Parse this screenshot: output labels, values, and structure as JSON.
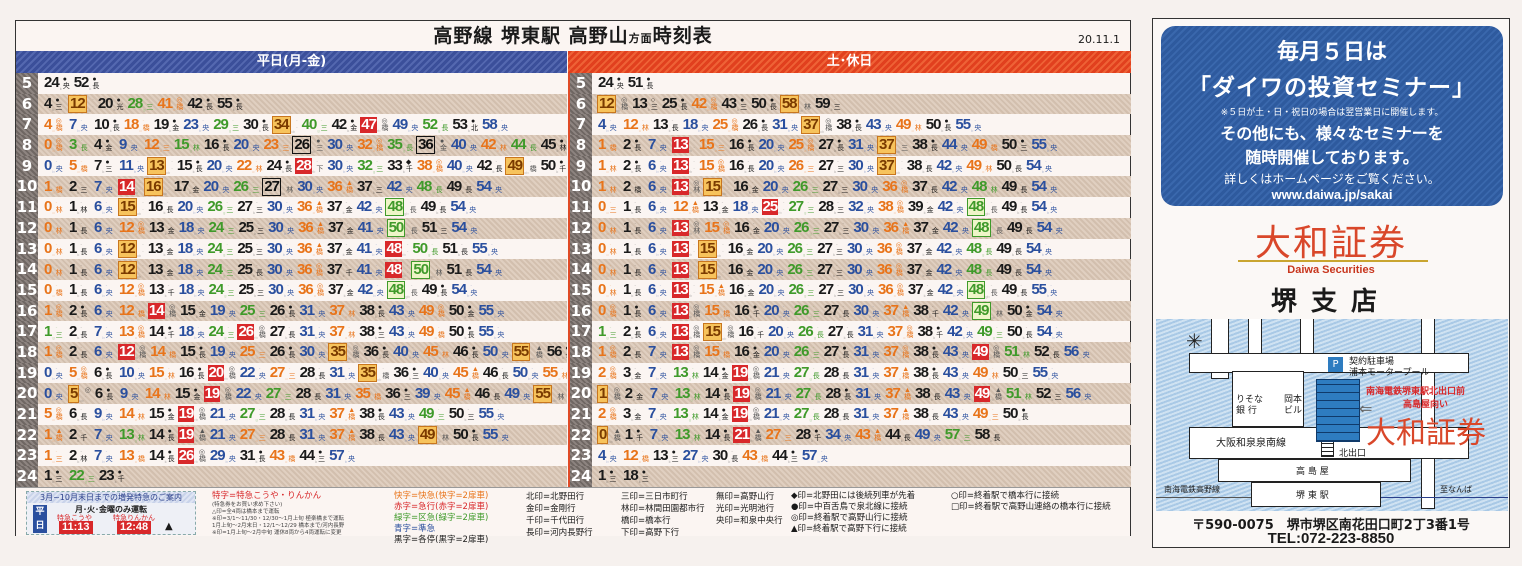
{
  "header": {
    "title_main": "高野線 堺東駅 高野山",
    "title_small": "方面",
    "title_tail": "時刻表",
    "date": "20.11.1"
  },
  "weekday": {
    "label": "平日(月-金)",
    "rows": [
      {
        "hour": "5",
        "trains": [
          "24 k ● 央",
          "52 k ● 長"
        ]
      },
      {
        "hour": "6",
        "trains": [
          "4 k ● 三",
          "12 ob - -",
          "20 k ● 光",
          "28 g - 三",
          "41 o ◎ 橋",
          "42 k ● 長",
          "55 k ● 長"
        ]
      },
      {
        "hour": "7",
        "trains": [
          "4 o ◎ 橋",
          "7 b - 央",
          "10 k ● 長",
          "18 o - 橋",
          "19 k ● 金",
          "23 b - 央",
          "29 g - 三",
          "30 k ● 長",
          "34 ob - -",
          "40 g - 三",
          "42 k ● 金",
          "47 rb ◎ 橋",
          "49 b - 央",
          "52 g - 長",
          "53 k ● 北",
          "58 b - 央"
        ]
      },
      {
        "hour": "8",
        "trains": [
          "0 o ◎ 橋",
          "3 g - 長",
          "4 k ● 金",
          "9 b - 央",
          "12 o - 三",
          "15 g - 林",
          "16 k ● 長",
          "20 b - 央",
          "23 o - 三",
          "26 kb ● 三",
          "30 b - 央",
          "32 o ◎ 橋",
          "35 g - 長",
          "36 kb ● 金",
          "40 b - 央",
          "42 o - 林",
          "44 g - 長",
          "45 k ● 林",
          "50 b - 央",
          "52 o - 橋",
          "56 k ● 長"
        ]
      },
      {
        "hour": "9",
        "trains": [
          "0 b - 央",
          "5 o - 橋",
          "7 k ● 三",
          "11 b - 央",
          "13 ob - -",
          "15 k ● 長",
          "20 b - 央",
          "22 o - 林",
          "24 k ● 長",
          "28 rb - 下",
          "30 b - 央",
          "32 g - 三",
          "33 k ◆ 千",
          "38 o ◎ 橋",
          "40 b - 央",
          "42 k - 長",
          "49 ob - 橋",
          "50 k ● 千",
          "54 b - 央",
          "56 k ◆ 長"
        ]
      },
      {
        "hour": "10",
        "trains": [
          "1 o - 橋",
          "2 k - 三",
          "7 b - 央",
          "14 rb - -",
          "16 ob - -",
          "17 k - 金",
          "20 b - 央",
          "26 g - 三",
          "27 kb - 林",
          "30 b - 央",
          "36 o ▲ 橋",
          "37 k - 三",
          "42 b - 央",
          "48 g - 長",
          "49 k - 長",
          "54 b - 央"
        ]
      },
      {
        "hour": "11",
        "trains": [
          "0 o - 林",
          "1 k - 林",
          "6 b - 央",
          "15 ob - -",
          "16 k - 長",
          "20 b - 央",
          "26 g - 三",
          "27 k - 三",
          "30 b - 央",
          "36 o ▲ 橋",
          "37 k - 金",
          "42 b - 央",
          "48 gb - 長",
          "49 k - 長",
          "54 b - 央"
        ]
      },
      {
        "hour": "12",
        "trains": [
          "0 o - 林",
          "1 k - 長",
          "6 b - 央",
          "12 o ◎ 橋",
          "13 k - 金",
          "18 b - 央",
          "24 g - 三",
          "25 k - 三",
          "30 b - 央",
          "36 o ▲ 橋",
          "37 k - 金",
          "41 b - 央",
          "50 gb - 長",
          "51 k - 三",
          "54 b - 央"
        ]
      },
      {
        "hour": "13",
        "trains": [
          "0 o - 林",
          "1 k - 長",
          "6 b - 央",
          "12 ob - -",
          "13 k - 金",
          "18 b - 央",
          "24 g - 三",
          "25 k - 三",
          "30 b - 央",
          "36 o ▲ 橋",
          "37 k - 金",
          "41 b - 央",
          "48 rb - -",
          "50 g - 長",
          "51 k - 長",
          "55 b - 央"
        ]
      },
      {
        "hour": "14",
        "trains": [
          "0 o - 林",
          "1 k - 長",
          "6 b - 央",
          "12 ob - -",
          "13 k - 金",
          "18 b - 央",
          "24 g - 三",
          "25 k - 長",
          "30 b - 央",
          "36 o ◎ 橋",
          "37 k - 千",
          "41 b - 央",
          "48 rb - -",
          "50 gb - 林",
          "51 k - 長",
          "54 b - 央"
        ]
      },
      {
        "hour": "15",
        "trains": [
          "0 o - 橋",
          "1 k - 長",
          "6 b - 央",
          "12 o ◎ 橋",
          "13 k - 千",
          "18 b - 央",
          "24 g - 三",
          "25 k - 三",
          "30 b - 央",
          "36 o ◎ 橋",
          "37 k - 金",
          "42 b - 央",
          "48 gb - 長",
          "49 k ● 長",
          "54 b - 央"
        ]
      },
      {
        "hour": "16",
        "trains": [
          "1 o ◎ 橋",
          "2 k ● 長",
          "6 b - 央",
          "12 o - 橋",
          "14 rb ◎ 橋",
          "15 k - 金",
          "19 b - 央",
          "25 g - 三",
          "26 k ● 長",
          "31 b - 央",
          "37 o - 林",
          "38 k ● 長",
          "43 b - 央",
          "49 o ◎ 橋",
          "50 k ● 金",
          "55 b - 央"
        ]
      },
      {
        "hour": "17",
        "trains": [
          "1 g - 三",
          "2 k - 長",
          "7 b - 央",
          "13 o ◎ 橋",
          "14 k ● 千",
          "18 b - 央",
          "24 g - 三",
          "26 rb ◎ 橋",
          "27 k - 長",
          "31 b - 央",
          "37 o - 林",
          "38 k ● 三",
          "43 b - 央",
          "49 o - 橋",
          "50 k ● 長",
          "55 b - 央"
        ]
      },
      {
        "hour": "18",
        "trains": [
          "1 o ◎ 橋",
          "2 k - 長",
          "6 b - 央",
          "12 rb ◎ 橋",
          "14 o - 橋",
          "15 k ● 長",
          "19 b - 央",
          "25 o - 三",
          "26 k ● 長",
          "30 b - 央",
          "35 ob ◎ 橋",
          "36 k ● 長",
          "40 b - 央",
          "45 o - 林",
          "46 k ● 長",
          "50 b - 央",
          "55 ob ▲ 橋",
          "56 k ● 長"
        ]
      },
      {
        "hour": "19",
        "trains": [
          "0 b - 央",
          "5 o ◎ 橋",
          "6 k ● 長",
          "10 b - 央",
          "15 o - 林",
          "16 k ● 長",
          "20 rb ◎ 橋",
          "22 b - 央",
          "27 o - 三",
          "28 k - 長",
          "31 b - 央",
          "35 ob - 橋",
          "36 k ● 三",
          "40 b - 央",
          "45 o ▲ 橋",
          "46 k - 長",
          "50 b - 央",
          "55 o - 林",
          "56 k ● 長"
        ]
      },
      {
        "hour": "20",
        "trains": [
          "0 b - 央",
          "5 ob ◎ -",
          "6 k ● 長",
          "9 b - 央",
          "14 o - 林",
          "15 k ● 金",
          "19 rb ◎ 橋",
          "22 b - 央",
          "27 g - 三",
          "28 k - 長",
          "31 b - 央",
          "35 o - 橋",
          "36 k ● 三",
          "39 b - 央",
          "45 o ▲ 橋",
          "46 k - 長",
          "49 b - 央",
          "55 ob - 林",
          "56 k - 長",
          "59 b - 央"
        ]
      },
      {
        "hour": "21",
        "trains": [
          "5 o ◎ 橋",
          "6 k - 長",
          "9 b - 央",
          "14 o - 林",
          "15 k ● 金",
          "19 rb ◎ 橋",
          "21 b - 央",
          "27 g - 三",
          "28 k - 長",
          "31 b - 央",
          "37 o ▲ 橋",
          "38 k ● 長",
          "43 b - 央",
          "49 g - 三",
          "50 k - 三",
          "55 b - 央"
        ]
      },
      {
        "hour": "22",
        "trains": [
          "1 o ▲ 橋",
          "2 k - 千",
          "7 b - 央",
          "13 g - 林",
          "14 k ● 長",
          "19 rb ▲ 橋",
          "21 b - 央",
          "27 o - 三",
          "28 k - 長",
          "31 b - 央",
          "37 o ▲ 橋",
          "38 k - 長",
          "43 b - 央",
          "49 ob - 林",
          "50 k ● 長",
          "55 b - 央"
        ]
      },
      {
        "hour": "23",
        "trains": [
          "1 o - 三",
          "2 k - 林",
          "7 b - 央",
          "13 o - 橋",
          "14 k ● 長",
          "26 rb ◎ 橋",
          "29 b - 央",
          "31 k ● 長",
          "43 o - 橋",
          "44 k ● 三",
          "57 b - 央"
        ]
      },
      {
        "hour": "24",
        "trains": [
          "1 k ● 三",
          "22 g - 三",
          "23 k ● 千"
        ]
      }
    ]
  },
  "weekend": {
    "label": "土･休日",
    "rows": [
      {
        "hour": "5",
        "trains": [
          "24 k ● 央",
          "51 k ● 長"
        ]
      },
      {
        "hour": "6",
        "trains": [
          "12 ob ◎ 橋",
          "13 k ○ 三",
          "25 k ● 長",
          "42 o ◎ 橋",
          "43 k ● 三",
          "50 k ● 長",
          "58 ob - 林",
          "59 k - 三"
        ]
      },
      {
        "hour": "7",
        "trains": [
          "4 b - 央",
          "12 o - 林",
          "13 k - 長",
          "18 b - 央",
          "25 o ◎ 橋",
          "26 k ● 長",
          "31 b - 央",
          "37 ob ◎ 橋",
          "38 k ● 長",
          "43 b - 央",
          "49 o - 林",
          "50 k ● 長",
          "55 b - 央"
        ]
      },
      {
        "hour": "8",
        "trains": [
          "1 o - 橋",
          "2 k ● 長",
          "7 b - 央",
          "13 rb - -",
          "15 o - 三",
          "16 k ● 長",
          "20 b - 央",
          "25 o ◎ 橋",
          "27 k ● 長",
          "31 b - 央",
          "37 ob - 三",
          "38 k ● 長",
          "44 b - 央",
          "49 o - 橋",
          "50 k ● 三",
          "55 b - 央"
        ]
      },
      {
        "hour": "9",
        "trains": [
          "1 o - 林",
          "2 k ● 長",
          "6 b - 央",
          "13 rb - -",
          "15 o ◎ 橋",
          "16 k - 長",
          "20 b - 央",
          "26 o - 三",
          "27 k - 三",
          "30 b - 央",
          "37 ob - -",
          "38 k - 長",
          "42 b - 央",
          "49 o - 林",
          "50 k - 長",
          "54 b - 央"
        ]
      },
      {
        "hour": "10",
        "trains": [
          "1 o - 林",
          "2 k - 橋",
          "6 b - 央",
          "13 rb ◎ 林",
          "15 ob - -",
          "16 k - 金",
          "20 b - 央",
          "26 g - 三",
          "27 k - 三",
          "30 b - 央",
          "36 o ◎ 橋",
          "37 k - 長",
          "42 b - 央",
          "48 g - 林",
          "49 k - 長",
          "54 b - 央"
        ]
      },
      {
        "hour": "11",
        "trains": [
          "0 o - 三",
          "1 k - 長",
          "6 b - 央",
          "12 o ▲ 橋",
          "13 k - 金",
          "18 b - 央",
          "25 rb - -",
          "27 g - 三",
          "28 k - 三",
          "32 b - 央",
          "38 o ◎ 橋",
          "39 k - 金",
          "42 b - 央",
          "48 gb - 長",
          "49 k - 長",
          "54 b - 央"
        ]
      },
      {
        "hour": "12",
        "trains": [
          "0 o - 林",
          "1 k - 長",
          "6 b - 央",
          "13 rb ◎ 林",
          "15 o ◎ 橋",
          "16 k - 金",
          "20 b - 央",
          "26 g - 三",
          "27 k - 三",
          "30 b - 央",
          "36 o ▲ 橋",
          "37 k - 金",
          "42 b - 央",
          "48 gb - 長",
          "49 k - 長",
          "54 b - 央"
        ]
      },
      {
        "hour": "13",
        "trains": [
          "0 o - 林",
          "1 k - 長",
          "6 b - 央",
          "13 rb - -",
          "15 ob - -",
          "16 k - 金",
          "20 b - 央",
          "26 g - 三",
          "27 k - 三",
          "30 b - 央",
          "36 o ◎ 橋",
          "37 k - 金",
          "42 b - 央",
          "48 g - 長",
          "49 k - 長",
          "54 b - 央"
        ]
      },
      {
        "hour": "14",
        "trains": [
          "0 o - 林",
          "1 k - 長",
          "6 b - 央",
          "13 rb - -",
          "15 ob - -",
          "16 k - 金",
          "20 b - 央",
          "26 g - 三",
          "27 k - 三",
          "30 b - 央",
          "36 o ◎ 橋",
          "37 k - 金",
          "42 b - 央",
          "48 g - 長",
          "49 k - 長",
          "54 b - 央"
        ]
      },
      {
        "hour": "15",
        "trains": [
          "0 o - 林",
          "1 k - 長",
          "6 b - 央",
          "13 rb - -",
          "15 o ▲ 橋",
          "16 k - 金",
          "20 b - 央",
          "26 g - 三",
          "27 k - 三",
          "30 b - 央",
          "36 o ◎ 橋",
          "37 k - 金",
          "42 b - 央",
          "48 gb - 長",
          "49 k - 長",
          "55 b - 央"
        ]
      },
      {
        "hour": "16",
        "trains": [
          "0 o ◎ 橋",
          "1 k ● 長",
          "6 b - 央",
          "13 rb ◎ 橋",
          "15 o - 橋",
          "16 k ● 千",
          "20 b - 央",
          "26 g - 三",
          "27 k - 長",
          "30 b - 央",
          "37 o ▲ 橋",
          "38 k - 千",
          "42 b - 央",
          "49 gb - 林",
          "50 k ● 金",
          "54 b - 央"
        ]
      },
      {
        "hour": "17",
        "trains": [
          "1 g - 三",
          "2 k ● 長",
          "6 b - 央",
          "13 rb ◎ 橋",
          "15 ob ◎ 橋",
          "16 k - 千",
          "20 b - 央",
          "26 g - 長",
          "27 k - 長",
          "31 b - 央",
          "37 o ◎ 橋",
          "38 k ● 千",
          "42 b - 央",
          "49 g - 三",
          "50 k - 長",
          "54 b - 央"
        ]
      },
      {
        "hour": "18",
        "trains": [
          "1 o ◎ 橋",
          "2 k - 長",
          "7 b - 央",
          "13 rb ◎ 橋",
          "15 o - 橋",
          "16 k ● 金",
          "20 b - 央",
          "26 g - 三",
          "27 k ● 長",
          "31 b - 央",
          "37 o ◎ 橋",
          "38 k ● 長",
          "43 b - 央",
          "49 rb ◎ 橋",
          "51 g - 林",
          "52 k - 長",
          "56 b - 央"
        ]
      },
      {
        "hour": "19",
        "trains": [
          "2 o ◎ 橋",
          "3 k - 金",
          "7 b - 央",
          "13 g - 林",
          "14 k ● 金",
          "19 rb ◎ 橋",
          "21 b - 央",
          "27 g - 長",
          "28 k - 長",
          "31 b - 央",
          "37 o ▲ 橋",
          "38 k ● 長",
          "43 b - 央",
          "49 o - 林",
          "50 k - 三",
          "55 b - 央"
        ]
      },
      {
        "hour": "20",
        "trains": [
          "1 ob ◎ 橋",
          "2 k - 金",
          "7 b - 央",
          "13 g - 林",
          "14 k ● 長",
          "19 rb ◎ 橋",
          "21 b - 央",
          "27 g - 長",
          "28 k ● 長",
          "31 b - 央",
          "37 o ▲ 橋",
          "38 k - 長",
          "43 b - 央",
          "49 rb ▲ 橋",
          "51 g - 林",
          "52 k - 三",
          "56 b - 央"
        ]
      },
      {
        "hour": "21",
        "trains": [
          "2 o ◎ 橋",
          "3 k - 金",
          "7 b - 央",
          "13 g - 林",
          "14 k ● 金",
          "19 rb ◎ 橋",
          "21 b - 央",
          "27 g - 長",
          "28 k - 長",
          "31 b - 央",
          "37 o ▲ 橋",
          "38 k - 長",
          "43 b - 央",
          "49 o - 三",
          "50 k ● 長"
        ]
      },
      {
        "hour": "22",
        "trains": [
          "0 ob ▲ 橋",
          "1 k ● 千",
          "7 b - 央",
          "13 g - 林",
          "14 k ● 長",
          "21 rb ▲ 橋",
          "27 o - 三",
          "28 k ● 千",
          "34 b - 央",
          "43 o ▲ 橋",
          "44 k - 長",
          "49 b - 央",
          "57 g - 三",
          "58 k - 長"
        ]
      },
      {
        "hour": "23",
        "trains": [
          "4 b - 央",
          "12 o - 橋",
          "13 k ● 三",
          "27 b - 央",
          "30 k - 長",
          "43 o - 橋",
          "44 k ● 三",
          "57 b - 央"
        ]
      },
      {
        "hour": "24",
        "trains": [
          "1 k ● 三",
          "18 k ● 三"
        ]
      }
    ]
  },
  "legend": {
    "promo": {
      "title": "3月~10月末日までの増発特急のご案内",
      "days": "月･火･金曜のみ運転",
      "weekday": "平日",
      "name1": "特急こうや",
      "name2": "特急りんかん",
      "time1": "11:13",
      "time2": "12:48",
      "mark": "▲"
    },
    "ltd": "特字=特急こうや・りんかん",
    "notes": [
      "(特急券をお買い求め下さい)",
      "△印=全4両は橋本まで運転",
      "※印=3/1～11/30・12/30～1月上旬 極楽橋まで運転",
      "1月上旬～2月末日・12/1～12/29 橋本まで/河内長野",
      "※印=1月上旬～2月中旬 運休8両から4両運転に変更"
    ],
    "types": [
      "快字=快急(快字=2扉車)",
      "赤字=急行(赤字=2扉車)",
      "緑字=区急(緑字=2扉車)",
      "青字=準急",
      "黒字=各停(黒字=2扉車)"
    ],
    "dest1": [
      "北印=北野田行",
      "金印=金剛行",
      "千印=千代田行",
      "長印=河内長野行"
    ],
    "dest2": [
      "三印=三日市町行",
      "林印=林間田園都市行",
      "橋印=橋本行",
      "下印=高野下行"
    ],
    "dest3": [
      "無印=高野山行",
      "光印=光明池行",
      "央印=和泉中央行"
    ],
    "marks1": [
      "◆印=北野田には後続列車が先着",
      "●印=中百舌鳥で泉北線に接続",
      "◎印=終着駅で高野山行に接続",
      "▲印=終着駅で高野下行に接続"
    ],
    "marks2": [
      "○印=終着駅で橋本行に接続",
      "□印=終着駅で高野山連絡の橋本行に接続"
    ]
  },
  "ad": {
    "line1": "毎月５日は",
    "line2": "「ダイワの投資セミナー」",
    "note": "※５日が土・日・祝日の場合は翌営業日に開催します。",
    "line3": "その他にも、様々なセミナーを",
    "line4": "随時開催しております。",
    "line5": "詳しくはホームページをご覧ください。",
    "url": "www.daiwa.jp/sakai",
    "brand": "大和証券",
    "brand_en": "Daiwa Securities",
    "branch": "堺支店",
    "map": {
      "parking1": "契約駐車場",
      "parking2": "浦本モータープール",
      "p": "P",
      "loc1": "南海電鉄堺東駅北出口前",
      "loc2": "高島屋向い",
      "brand": "大和証券",
      "bank1": "りそな",
      "bank2": "銀 行",
      "bld1": "岡本",
      "bld2": "ビル",
      "road": "大阪和泉泉南線",
      "exit": "北出口",
      "dept": "高 島 屋",
      "station": "堺 東 駅",
      "line": "南海電鉄高野線",
      "namba": "至なんば"
    },
    "address": "〒590-0075　堺市堺区南花田口町2丁3番1号",
    "tel": "TEL:072-223-8850"
  },
  "colors": {
    "weekday_header": "#3b4f9a",
    "weekend_header": "#e1401e",
    "local": "#1a1a1a",
    "semi_express": "#2a4f9e",
    "sub_express": "#3f9a2a",
    "express": "#e8741a",
    "brand": "#d9472a"
  }
}
